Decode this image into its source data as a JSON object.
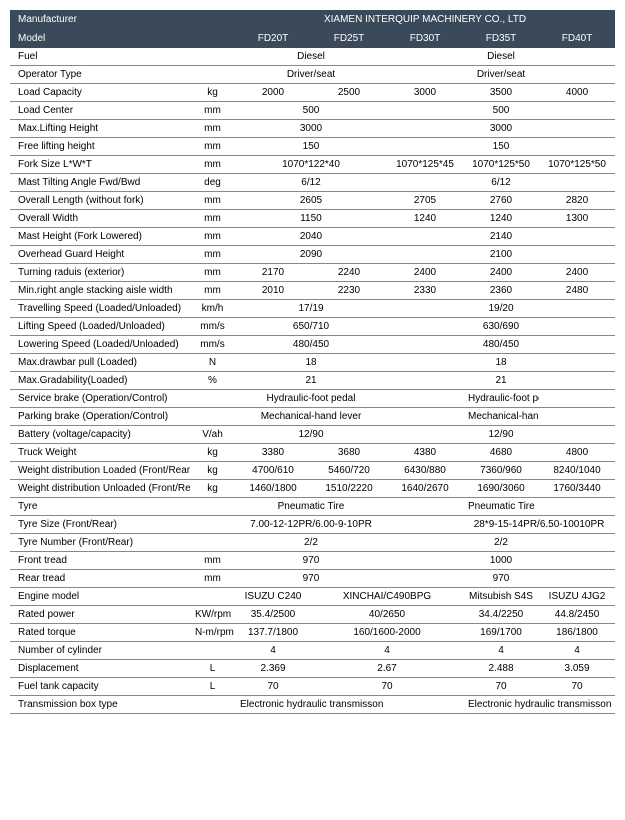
{
  "header": {
    "manufacturer_label": "Manufacturer",
    "manufacturer_value": "XIAMEN INTERQUIP MACHINERY CO., LTD",
    "model_label": "Model",
    "models": [
      "FD20T",
      "FD25T",
      "FD30T",
      "FD35T",
      "FD40T"
    ]
  },
  "rows": [
    {
      "label": "Fuel",
      "unit": "",
      "cells": [
        {
          "v": "Diesel",
          "span": 2
        },
        {
          "v": "",
          "span": 1
        },
        {
          "v": "Diesel",
          "span": 1
        },
        {
          "v": "",
          "span": 1
        }
      ]
    },
    {
      "label": "Operator Type",
      "unit": "",
      "cells": [
        {
          "v": "Driver/seat",
          "span": 2
        },
        {
          "v": "",
          "span": 1
        },
        {
          "v": "Driver/seat",
          "span": 1
        },
        {
          "v": "",
          "span": 1
        }
      ]
    },
    {
      "label": "Load Capacity",
      "unit": "kg",
      "cells": [
        {
          "v": "2000",
          "span": 1
        },
        {
          "v": "2500",
          "span": 1
        },
        {
          "v": "3000",
          "span": 1
        },
        {
          "v": "3500",
          "span": 1
        },
        {
          "v": "4000",
          "span": 1
        }
      ]
    },
    {
      "label": "Load Center",
      "unit": "mm",
      "cells": [
        {
          "v": "500",
          "span": 2
        },
        {
          "v": "",
          "span": 1
        },
        {
          "v": "500",
          "span": 1
        },
        {
          "v": "",
          "span": 1
        }
      ]
    },
    {
      "label": "Max.Lifting Height",
      "unit": "mm",
      "cells": [
        {
          "v": "3000",
          "span": 2
        },
        {
          "v": "",
          "span": 1
        },
        {
          "v": "3000",
          "span": 1
        },
        {
          "v": "",
          "span": 1
        }
      ]
    },
    {
      "label": "Free lifting height",
      "unit": "mm",
      "cells": [
        {
          "v": "150",
          "span": 2
        },
        {
          "v": "",
          "span": 1
        },
        {
          "v": "150",
          "span": 1
        },
        {
          "v": "",
          "span": 1
        }
      ]
    },
    {
      "label": "Fork Size  L*W*T",
      "unit": "mm",
      "cells": [
        {
          "v": "1070*122*40",
          "span": 2
        },
        {
          "v": "1070*125*45",
          "span": 1
        },
        {
          "v": "1070*125*50",
          "span": 1
        },
        {
          "v": "1070*125*50",
          "span": 1
        }
      ]
    },
    {
      "label": "Mast Tilting Angle  Fwd/Bwd",
      "unit": "deg",
      "cells": [
        {
          "v": "6/12",
          "span": 2
        },
        {
          "v": "",
          "span": 1
        },
        {
          "v": "6/12",
          "span": 1
        },
        {
          "v": "",
          "span": 1
        }
      ]
    },
    {
      "label": "Overall Length (without fork)",
      "unit": "mm",
      "cells": [
        {
          "v": "2605",
          "span": 2
        },
        {
          "v": "2705",
          "span": 1
        },
        {
          "v": "2760",
          "span": 1
        },
        {
          "v": "2820",
          "span": 1
        }
      ]
    },
    {
      "label": "Overall Width",
      "unit": "mm",
      "cells": [
        {
          "v": "1150",
          "span": 2
        },
        {
          "v": "1240",
          "span": 1
        },
        {
          "v": "1240",
          "span": 1
        },
        {
          "v": "1300",
          "span": 1
        }
      ]
    },
    {
      "label": "Mast Height (Fork Lowered)",
      "unit": "mm",
      "cells": [
        {
          "v": "2040",
          "span": 2
        },
        {
          "v": "",
          "span": 1
        },
        {
          "v": "2140",
          "span": 1
        },
        {
          "v": "",
          "span": 1
        }
      ]
    },
    {
      "label": "Overhead Guard Height",
      "unit": "mm",
      "cells": [
        {
          "v": "2090",
          "span": 2
        },
        {
          "v": "",
          "span": 1
        },
        {
          "v": "2100",
          "span": 1
        },
        {
          "v": "",
          "span": 1
        }
      ]
    },
    {
      "label": "Turning raduis (exterior)",
      "unit": "mm",
      "cells": [
        {
          "v": "2170",
          "span": 1
        },
        {
          "v": "2240",
          "span": 1
        },
        {
          "v": "2400",
          "span": 1
        },
        {
          "v": "2400",
          "span": 1
        },
        {
          "v": "2400",
          "span": 1
        }
      ]
    },
    {
      "label": "Min.right angle stacking aisle width",
      "unit": "mm",
      "cells": [
        {
          "v": "2010",
          "span": 1
        },
        {
          "v": "2230",
          "span": 1
        },
        {
          "v": "2330",
          "span": 1
        },
        {
          "v": "2360",
          "span": 1
        },
        {
          "v": "2480",
          "span": 1
        }
      ]
    },
    {
      "label": "Travelling Speed (Loaded/Unloaded)",
      "unit": "km/h",
      "cells": [
        {
          "v": "17/19",
          "span": 2
        },
        {
          "v": "",
          "span": 1
        },
        {
          "v": "19/20",
          "span": 1
        },
        {
          "v": "",
          "span": 1
        }
      ]
    },
    {
      "label": "Lifting Speed (Loaded/Unloaded)",
      "unit": "mm/s",
      "cells": [
        {
          "v": "650/710",
          "span": 2
        },
        {
          "v": "",
          "span": 1
        },
        {
          "v": "630/690",
          "span": 1
        },
        {
          "v": "",
          "span": 1
        }
      ]
    },
    {
      "label": "Lowering Speed (Loaded/Unloaded)",
      "unit": "mm/s",
      "cells": [
        {
          "v": "480/450",
          "span": 2
        },
        {
          "v": "",
          "span": 1
        },
        {
          "v": "480/450",
          "span": 1
        },
        {
          "v": "",
          "span": 1
        }
      ]
    },
    {
      "label": "Max.drawbar pull (Loaded)",
      "unit": "N",
      "cells": [
        {
          "v": "18",
          "span": 2
        },
        {
          "v": "",
          "span": 1
        },
        {
          "v": "18",
          "span": 1
        },
        {
          "v": "",
          "span": 1
        }
      ]
    },
    {
      "label": "Max.Gradability(Loaded)",
      "unit": "%",
      "cells": [
        {
          "v": "21",
          "span": 2
        },
        {
          "v": "",
          "span": 1
        },
        {
          "v": "21",
          "span": 1
        },
        {
          "v": "",
          "span": 1
        }
      ]
    },
    {
      "label": "Service brake (Operation/Control)",
      "unit": "",
      "cells": [
        {
          "v": "Hydraulic-foot pedal",
          "span": 2
        },
        {
          "v": "",
          "span": 1
        },
        {
          "v": "Hydraulic-foot pedal",
          "span": 1
        },
        {
          "v": "",
          "span": 1
        }
      ]
    },
    {
      "label": "Parking brake (Operation/Control)",
      "unit": "",
      "cells": [
        {
          "v": "Mechanical-hand lever",
          "span": 2
        },
        {
          "v": "",
          "span": 1
        },
        {
          "v": "Mechanical-hand lever",
          "span": 1
        },
        {
          "v": "",
          "span": 1
        }
      ]
    },
    {
      "label": "Battery (voltage/capacity)",
      "unit": "V/ah",
      "cells": [
        {
          "v": "12/90",
          "span": 2
        },
        {
          "v": "",
          "span": 1
        },
        {
          "v": "12/90",
          "span": 1
        },
        {
          "v": "",
          "span": 1
        }
      ]
    },
    {
      "label": "Truck Weight",
      "unit": "kg",
      "cells": [
        {
          "v": "3380",
          "span": 1
        },
        {
          "v": "3680",
          "span": 1
        },
        {
          "v": "4380",
          "span": 1
        },
        {
          "v": "4680",
          "span": 1
        },
        {
          "v": "4800",
          "span": 1
        }
      ]
    },
    {
      "label": "Weight distribution Loaded (Front/Rear)",
      "unit": "kg",
      "cells": [
        {
          "v": "4700/610",
          "span": 1
        },
        {
          "v": "5460/720",
          "span": 1
        },
        {
          "v": "6430/880",
          "span": 1
        },
        {
          "v": "7360/960",
          "span": 1
        },
        {
          "v": "8240/1040",
          "span": 1
        }
      ]
    },
    {
      "label": "Weight distribution Unloaded (Front/Rear)",
      "unit": "kg",
      "cells": [
        {
          "v": "1460/1800",
          "span": 1
        },
        {
          "v": "1510/2220",
          "span": 1
        },
        {
          "v": "1640/2670",
          "span": 1
        },
        {
          "v": "1690/3060",
          "span": 1
        },
        {
          "v": "1760/3440",
          "span": 1
        }
      ]
    },
    {
      "label": "Tyre",
      "unit": "",
      "cells": [
        {
          "v": "Pneumatic Tire",
          "span": 2
        },
        {
          "v": "",
          "span": 1
        },
        {
          "v": "Pneumatic Tire",
          "span": 1
        },
        {
          "v": "",
          "span": 1
        }
      ]
    },
    {
      "label": "Tyre Size  (Front/Rear)",
      "unit": "",
      "cells": [
        {
          "v": "7.00-12-12PR/6.00-9-10PR",
          "span": 2
        },
        {
          "v": "",
          "span": 1
        },
        {
          "v": "28*9-15-14PR/6.50-10010PR",
          "span": 2
        }
      ]
    },
    {
      "label": "Tyre Number  (Front/Rear)",
      "unit": "",
      "cells": [
        {
          "v": "2/2",
          "span": 2
        },
        {
          "v": "",
          "span": 1
        },
        {
          "v": "2/2",
          "span": 1
        },
        {
          "v": "",
          "span": 1
        }
      ]
    },
    {
      "label": "Front tread",
      "unit": "mm",
      "cells": [
        {
          "v": "970",
          "span": 2
        },
        {
          "v": "",
          "span": 1
        },
        {
          "v": "1000",
          "span": 1
        },
        {
          "v": "",
          "span": 1
        }
      ]
    },
    {
      "label": "Rear tread",
      "unit": "mm",
      "cells": [
        {
          "v": "970",
          "span": 2
        },
        {
          "v": "",
          "span": 1
        },
        {
          "v": "970",
          "span": 1
        },
        {
          "v": "",
          "span": 1
        }
      ]
    },
    {
      "label": "Engine model",
      "unit": "",
      "cells": [
        {
          "v": "ISUZU C240",
          "span": 1
        },
        {
          "v": "XINCHAI/C490BPG",
          "span": 2
        },
        {
          "v": "Mitsubish S4S",
          "span": 1
        },
        {
          "v": "ISUZU 4JG2",
          "span": 1
        }
      ]
    },
    {
      "label": "Rated power",
      "unit": "KW/rpm",
      "cells": [
        {
          "v": "35.4/2500",
          "span": 1
        },
        {
          "v": "40/2650",
          "span": 2
        },
        {
          "v": "34.4/2250",
          "span": 1
        },
        {
          "v": "44.8/2450",
          "span": 1
        }
      ]
    },
    {
      "label": "Rated torque",
      "unit": "N-m/rpm",
      "cells": [
        {
          "v": "137.7/1800",
          "span": 1
        },
        {
          "v": "160/1600-2000",
          "span": 2
        },
        {
          "v": "169/1700",
          "span": 1
        },
        {
          "v": "186/1800",
          "span": 1
        }
      ]
    },
    {
      "label": "Number of cylinder",
      "unit": "",
      "cells": [
        {
          "v": "4",
          "span": 1
        },
        {
          "v": "4",
          "span": 2
        },
        {
          "v": "4",
          "span": 1
        },
        {
          "v": "4",
          "span": 1
        }
      ]
    },
    {
      "label": "Displacement",
      "unit": "L",
      "cells": [
        {
          "v": "2.369",
          "span": 1
        },
        {
          "v": "2.67",
          "span": 2
        },
        {
          "v": "2.488",
          "span": 1
        },
        {
          "v": "3.059",
          "span": 1
        }
      ]
    },
    {
      "label": "Fuel tank capacity",
      "unit": "L",
      "cells": [
        {
          "v": "70",
          "span": 1
        },
        {
          "v": "70",
          "span": 2
        },
        {
          "v": "70",
          "span": 1
        },
        {
          "v": "70",
          "span": 1
        }
      ]
    },
    {
      "label": "Transmission box type",
      "unit": "",
      "cells": [
        {
          "v": "Electronic hydraulic transmisson",
          "span": 2
        },
        {
          "v": "",
          "span": 1
        },
        {
          "v": "Electronic hydraulic transmisson",
          "span": 2
        }
      ]
    }
  ]
}
